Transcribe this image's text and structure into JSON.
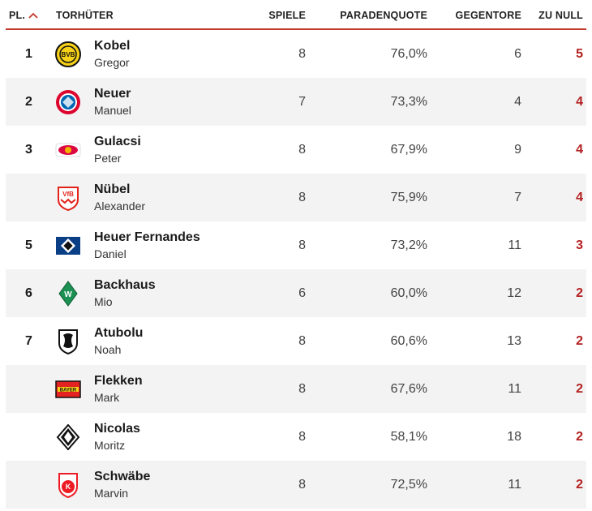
{
  "header": {
    "rank": "PL.",
    "keeper": "TORHÜTER",
    "games": "SPIELE",
    "save_rate": "PARADENQUOTE",
    "conceded": "GEGENTORE",
    "clean_sheets": "ZU NULL"
  },
  "accent_color": "#c0392b",
  "rows": [
    {
      "rank": "1",
      "last": "Kobel",
      "first": "Gregor",
      "games": "8",
      "quote": "76,0%",
      "conceded": "6",
      "clean": "5",
      "logo": "bvb-logo"
    },
    {
      "rank": "2",
      "last": "Neuer",
      "first": "Manuel",
      "games": "7",
      "quote": "73,3%",
      "conceded": "4",
      "clean": "4",
      "logo": "fcb-logo"
    },
    {
      "rank": "3",
      "last": "Gulacsi",
      "first": "Peter",
      "games": "8",
      "quote": "67,9%",
      "conceded": "9",
      "clean": "4",
      "logo": "rbl-logo"
    },
    {
      "rank": "",
      "last": "Nübel",
      "first": "Alexander",
      "games": "8",
      "quote": "75,9%",
      "conceded": "7",
      "clean": "4",
      "logo": "vfb-logo"
    },
    {
      "rank": "5",
      "last": "Heuer Fernandes",
      "first": "Daniel",
      "games": "8",
      "quote": "73,2%",
      "conceded": "11",
      "clean": "3",
      "logo": "hsv-logo"
    },
    {
      "rank": "6",
      "last": "Backhaus",
      "first": "Mio",
      "games": "6",
      "quote": "60,0%",
      "conceded": "12",
      "clean": "2",
      "logo": "svw-logo"
    },
    {
      "rank": "7",
      "last": "Atubolu",
      "first": "Noah",
      "games": "8",
      "quote": "60,6%",
      "conceded": "13",
      "clean": "2",
      "logo": "scf-logo"
    },
    {
      "rank": "",
      "last": "Flekken",
      "first": "Mark",
      "games": "8",
      "quote": "67,6%",
      "conceded": "11",
      "clean": "2",
      "logo": "b04-logo"
    },
    {
      "rank": "",
      "last": "Nicolas",
      "first": "Moritz",
      "games": "8",
      "quote": "58,1%",
      "conceded": "18",
      "clean": "2",
      "logo": "bmg-logo"
    },
    {
      "rank": "",
      "last": "Schwäbe",
      "first": "Marvin",
      "games": "8",
      "quote": "72,5%",
      "conceded": "11",
      "clean": "2",
      "logo": "koe-logo"
    }
  ]
}
